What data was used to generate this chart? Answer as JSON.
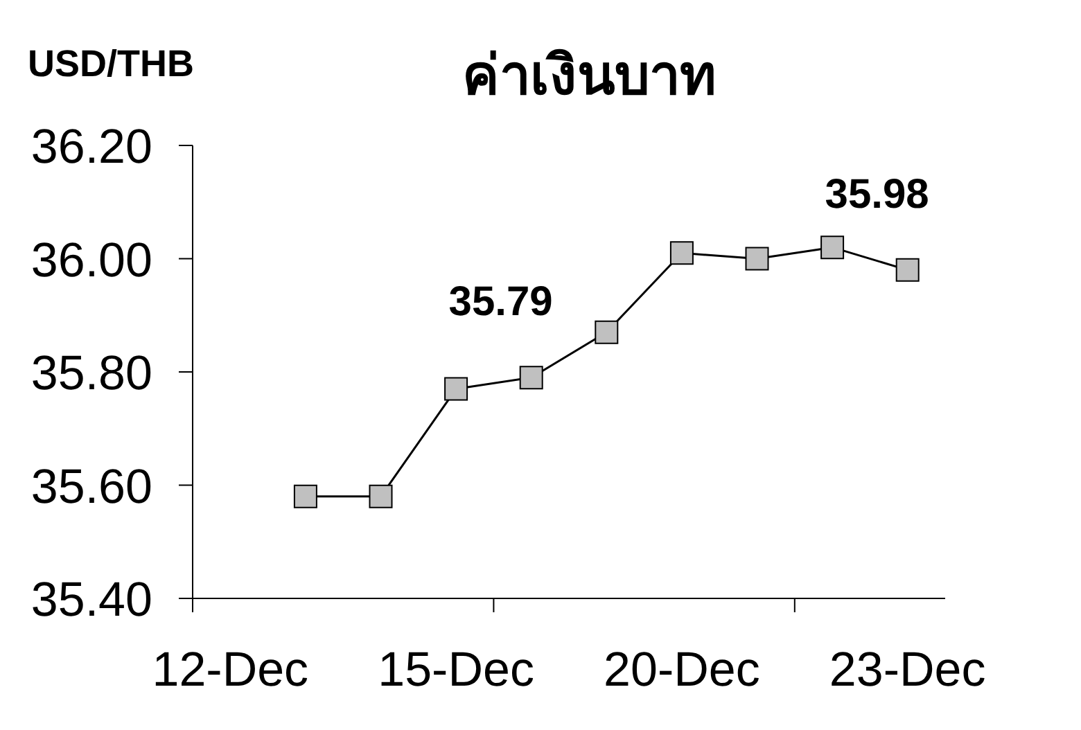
{
  "chart_data": {
    "type": "line",
    "title": "ค่าเงินบาท",
    "ylabel": "USD/THB",
    "categories": [
      "12-Dec",
      null,
      null,
      "15-Dec",
      null,
      null,
      "20-Dec",
      null,
      null,
      "23-Dec"
    ],
    "series": [
      {
        "color": "#000000",
        "values": [
          null,
          35.58,
          35.58,
          35.77,
          35.79,
          35.87,
          36.01,
          36.0,
          36.02,
          35.98
        ],
        "value_labels": [
          null,
          null,
          null,
          null,
          "35.79",
          null,
          null,
          null,
          null,
          "35.98"
        ]
      }
    ],
    "ylim": [
      35.4,
      36.2
    ],
    "yticks": [
      {
        "value": 35.4,
        "label": "35.40"
      },
      {
        "value": 35.6,
        "label": "35.60"
      },
      {
        "value": 35.8,
        "label": "35.80"
      },
      {
        "value": 36.0,
        "label": "36.00"
      },
      {
        "value": 36.2,
        "label": "36.20"
      }
    ],
    "marker": "square",
    "line_style": "solid"
  }
}
